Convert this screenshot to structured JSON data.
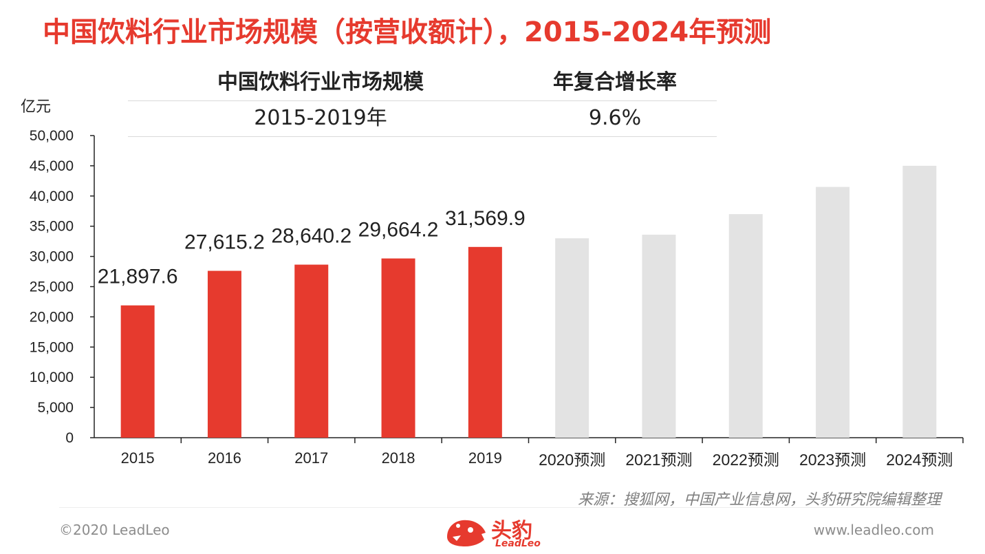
{
  "page": {
    "title": "中国饮料行业市场规模（按营收额计），2015-2024年预测"
  },
  "summary": {
    "col1_header": "中国饮料行业市场规模",
    "col2_header": "年复合增长率",
    "col1_value": "2015-2019年",
    "col2_value": "9.6%"
  },
  "colors": {
    "accent": "#e63a2e",
    "forecast": "#e3e3e3",
    "muted": "#7f7f7f"
  },
  "chart_data": {
    "type": "bar",
    "ylabel": "亿元",
    "ylim": [
      0,
      50000
    ],
    "yticks": [
      0,
      5000,
      10000,
      15000,
      20000,
      25000,
      30000,
      35000,
      40000,
      45000,
      50000
    ],
    "ytick_labels": [
      "0",
      "5,000",
      "10,000",
      "15,000",
      "20,000",
      "25,000",
      "30,000",
      "35,000",
      "40,000",
      "45,000",
      "50,000"
    ],
    "categories": [
      "2015",
      "2016",
      "2017",
      "2018",
      "2019",
      "2020预测",
      "2021预测",
      "2022预测",
      "2023预测",
      "2024预测"
    ],
    "values": [
      21897.6,
      27615.2,
      28640.2,
      29664.2,
      31569.9,
      33000,
      33600,
      37000,
      41500,
      45000
    ],
    "data_labels": [
      "21,897.6",
      "27,615.2",
      "28,640.2",
      "29,664.2",
      "31,569.9",
      "",
      "",
      "",
      "",
      ""
    ],
    "forecast": [
      false,
      false,
      false,
      false,
      false,
      true,
      true,
      true,
      true,
      true
    ],
    "grid": false,
    "legend": "none"
  },
  "footer": {
    "source": "来源：搜狐网，中国产业信息网，头豹研究院编辑整理",
    "copyright": "©2020 LeadLeo",
    "website": "www.leadleo.com",
    "brand_cn": "头豹",
    "brand_en": "LeadLeo",
    "logo_icon": "leopard-head-icon"
  }
}
